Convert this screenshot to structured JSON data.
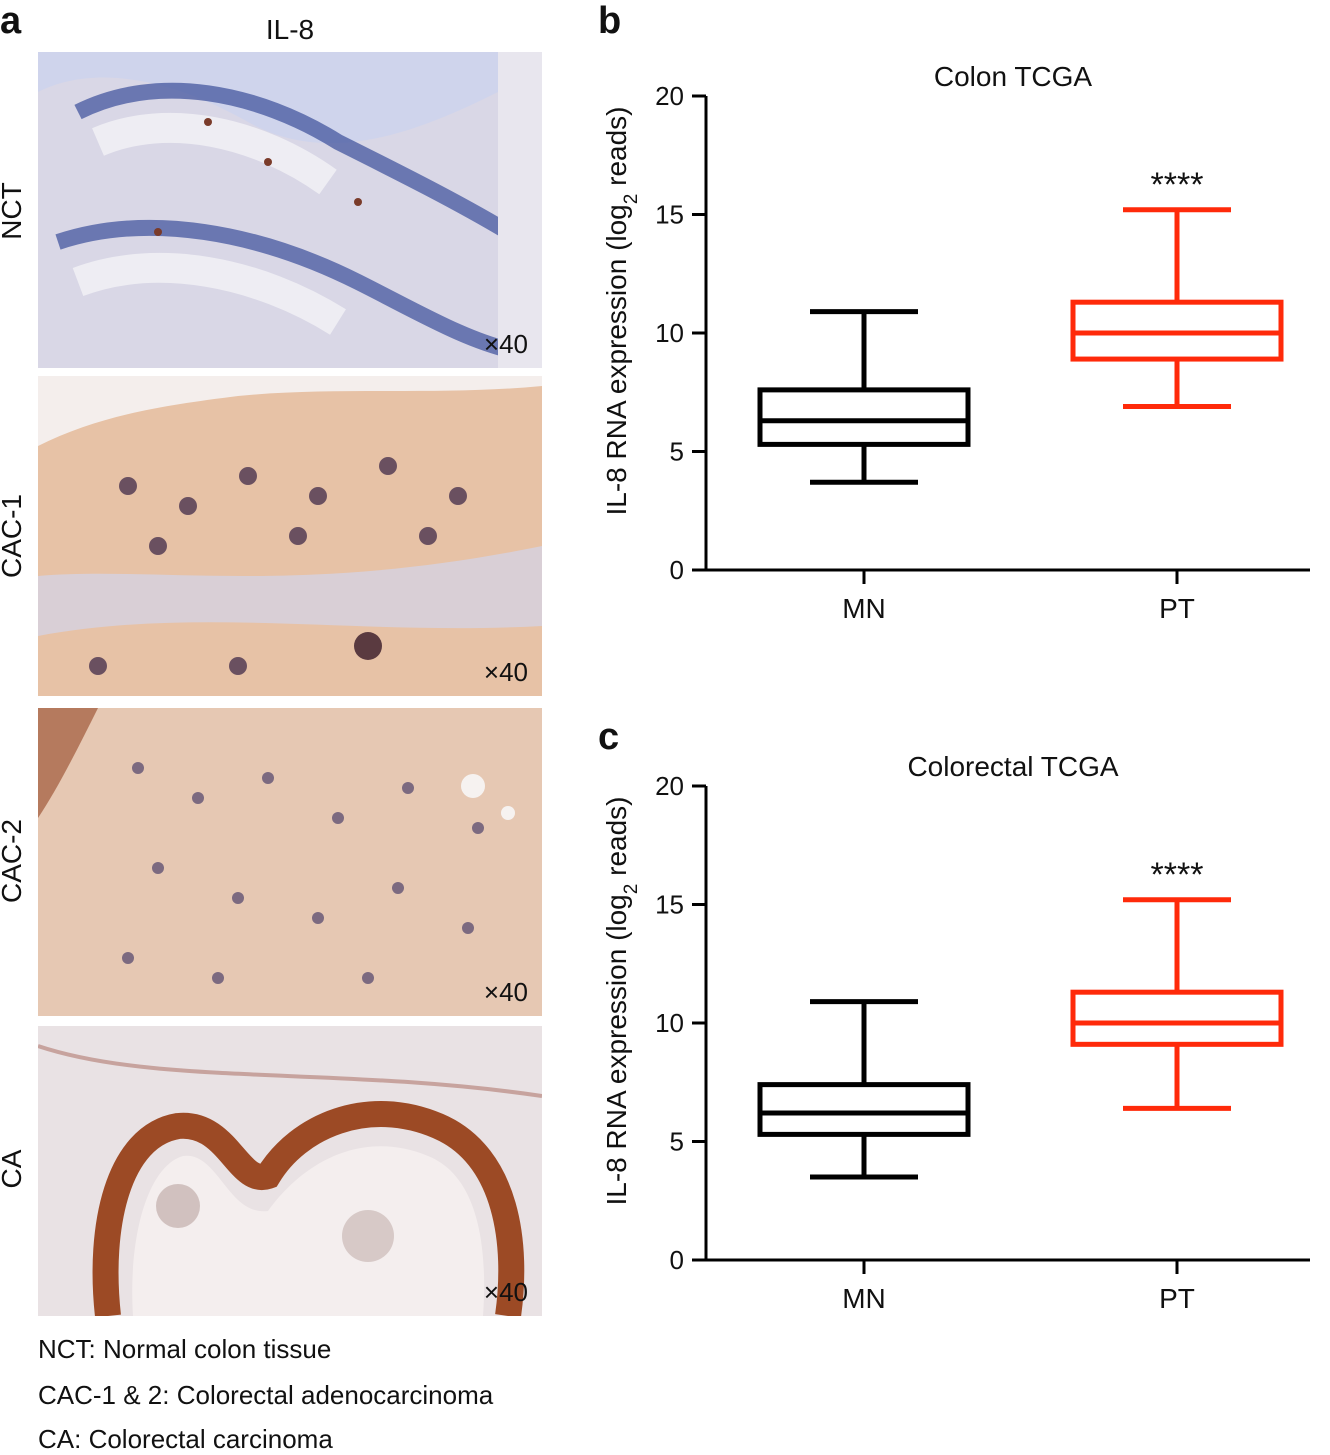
{
  "panel_a": {
    "letter": "a",
    "title": "IL-8",
    "rows": [
      {
        "label": "NCT",
        "magnification": "×40"
      },
      {
        "label": "CAC-1",
        "magnification": "×40"
      },
      {
        "label": "CAC-2",
        "magnification": "×40"
      },
      {
        "label": "CA",
        "magnification": "×40"
      }
    ],
    "captions": [
      "NCT: Normal colon tissue",
      "CAC-1 & 2: Colorectal adenocarcinoma",
      "CA: Colorectal carcinoma"
    ]
  },
  "colors": {
    "MN": "#000000",
    "PT": "#ff2a0a",
    "tissue_bg_nct": "#d9d7e6",
    "tissue_bg_tumor": "#e7c2a6",
    "tissue_bg_ca": "#e9e2e4"
  },
  "chart_data": [
    {
      "panel": "b",
      "type": "box",
      "title": "Colon TCGA",
      "ylabel": "IL-8 RNA expression (log",
      "ylabel_sub": "2",
      "ylabel_tail": " reads)",
      "ylim": [
        0,
        20
      ],
      "yticks": [
        0,
        5,
        10,
        15,
        20
      ],
      "categories": [
        "MN",
        "PT"
      ],
      "boxes": [
        {
          "name": "MN",
          "min": 3.7,
          "q1": 5.3,
          "median": 6.3,
          "q3": 7.6,
          "max": 10.9
        },
        {
          "name": "PT",
          "min": 6.9,
          "q1": 8.9,
          "median": 10.0,
          "q3": 11.3,
          "max": 15.2,
          "annotation": "****"
        }
      ]
    },
    {
      "panel": "c",
      "type": "box",
      "title": "Colorectal TCGA",
      "ylabel": "IL-8 RNA expression (log",
      "ylabel_sub": "2",
      "ylabel_tail": " reads)",
      "ylim": [
        0,
        20
      ],
      "yticks": [
        0,
        5,
        10,
        15,
        20
      ],
      "categories": [
        "MN",
        "PT"
      ],
      "boxes": [
        {
          "name": "MN",
          "min": 3.5,
          "q1": 5.3,
          "median": 6.2,
          "q3": 7.4,
          "max": 10.9
        },
        {
          "name": "PT",
          "min": 6.4,
          "q1": 9.1,
          "median": 10.0,
          "q3": 11.3,
          "max": 15.2,
          "annotation": "****"
        }
      ]
    }
  ]
}
